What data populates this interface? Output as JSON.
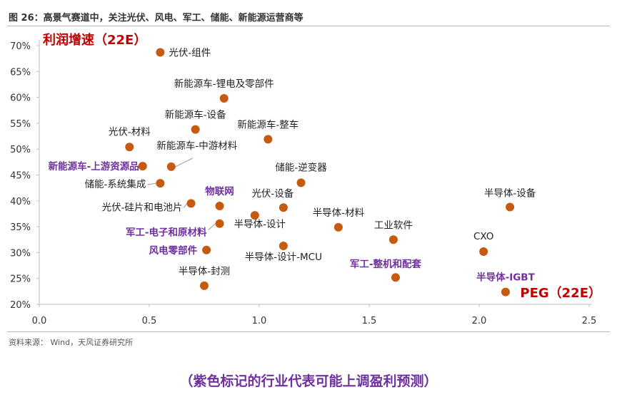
{
  "header": {
    "title": "图 26：高景气赛道中，关注光伏、风电、军工、储能、新能源运营商等"
  },
  "footer": {
    "source": "资料来源： Wind，天风证券研究所"
  },
  "note": "（紫色标记的行业代表可能上调盈利预测）",
  "colors": {
    "marker": "#c55a11",
    "highlight_label": "#7030a0",
    "normal_label": "#222222",
    "axis_title": "#c00000"
  },
  "chart_data": {
    "type": "scatter",
    "xlabel": "PEG（22E）",
    "ylabel": "利润增速（22E）",
    "xlim": [
      0.0,
      2.5
    ],
    "ylim": [
      20,
      70
    ],
    "x_ticks": [
      "0.0",
      "0.5",
      "1.0",
      "1.5",
      "2.0",
      "2.5"
    ],
    "y_ticks": [
      "20%",
      "25%",
      "30%",
      "35%",
      "40%",
      "45%",
      "50%",
      "55%",
      "60%",
      "65%",
      "70%"
    ],
    "grid": false,
    "points": [
      {
        "label": "光伏-组件",
        "x": 0.55,
        "y": 68.7,
        "highlight": false
      },
      {
        "label": "新能源车-锂电及零部件",
        "x": 0.84,
        "y": 59.8,
        "highlight": false
      },
      {
        "label": "新能源车-设备",
        "x": 0.71,
        "y": 53.8,
        "highlight": false
      },
      {
        "label": "新能源车-整车",
        "x": 1.04,
        "y": 51.9,
        "highlight": false
      },
      {
        "label": "光伏-材料",
        "x": 0.41,
        "y": 50.4,
        "highlight": false
      },
      {
        "label": "新能源车-中游材料",
        "x": 0.6,
        "y": 46.6,
        "highlight": false
      },
      {
        "label": "新能源车-上游资源品",
        "x": 0.47,
        "y": 46.7,
        "highlight": true
      },
      {
        "label": "储能-逆变器",
        "x": 1.19,
        "y": 43.5,
        "highlight": false
      },
      {
        "label": "储能-系统集成",
        "x": 0.55,
        "y": 43.4,
        "highlight": false
      },
      {
        "label": "半导体-设备",
        "x": 2.14,
        "y": 38.8,
        "highlight": false
      },
      {
        "label": "光伏-硅片和电池片",
        "x": 0.69,
        "y": 39.5,
        "highlight": false
      },
      {
        "label": "物联网",
        "x": 0.82,
        "y": 39.0,
        "highlight": true
      },
      {
        "label": "光伏-设备",
        "x": 1.11,
        "y": 38.7,
        "highlight": false
      },
      {
        "label": "半导体-材料",
        "x": 1.36,
        "y": 34.9,
        "highlight": false
      },
      {
        "label": "军工-电子和原材料",
        "x": 0.82,
        "y": 35.6,
        "highlight": true
      },
      {
        "label": "半导体-设计",
        "x": 0.98,
        "y": 37.2,
        "highlight": false
      },
      {
        "label": "工业软件",
        "x": 1.61,
        "y": 32.5,
        "highlight": false
      },
      {
        "label": "半导体-设计-MCU",
        "x": 1.11,
        "y": 31.3,
        "highlight": false
      },
      {
        "label": "CXO",
        "x": 2.02,
        "y": 30.2,
        "highlight": false
      },
      {
        "label": "风电零部件",
        "x": 0.76,
        "y": 30.5,
        "highlight": true
      },
      {
        "label": "军工-整机和配套",
        "x": 1.62,
        "y": 25.2,
        "highlight": true
      },
      {
        "label": "半导体-封测",
        "x": 0.75,
        "y": 23.6,
        "highlight": false
      },
      {
        "label": "半导体-IGBT",
        "x": 2.12,
        "y": 22.4,
        "highlight": true
      }
    ]
  }
}
